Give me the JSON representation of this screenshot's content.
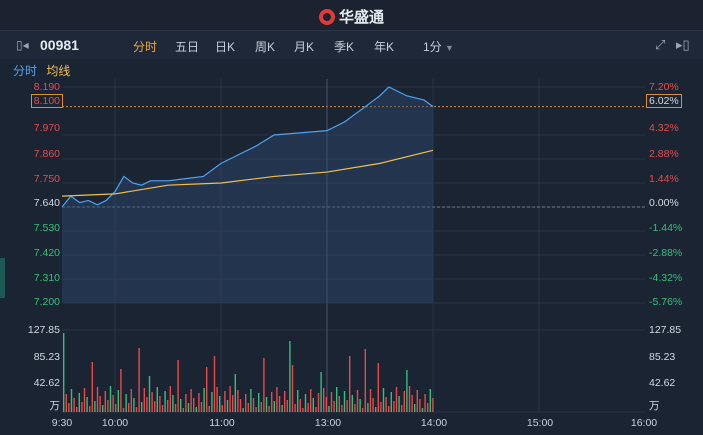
{
  "brand": {
    "name": "华盛通"
  },
  "toolbar": {
    "stock_code": "00981",
    "tabs": [
      "分时",
      "五日",
      "日K",
      "周K",
      "月K",
      "季K",
      "年K"
    ],
    "active_tab": "分时",
    "interval": "1分"
  },
  "legend": {
    "line1": "分时",
    "line2": "均线"
  },
  "price_axis": {
    "left": [
      "8.190",
      "8.100",
      "7.970",
      "7.860",
      "7.750",
      "7.640",
      "7.530",
      "7.420",
      "7.310",
      "7.200"
    ],
    "right": [
      "7.20%",
      "6.02%",
      "4.32%",
      "2.88%",
      "1.44%",
      "0.00%",
      "-1.44%",
      "-2.88%",
      "-4.32%",
      "-5.76%"
    ],
    "current_price": "8.100",
    "current_change": "6.02%"
  },
  "volume_axis": {
    "left": [
      "127.85",
      "85.23",
      "42.62",
      "万"
    ],
    "right": [
      "127.85",
      "85.23",
      "42.62",
      "万"
    ]
  },
  "time_axis": [
    "9:30",
    "10:00",
    "11:00",
    "13:00",
    "14:00",
    "15:00",
    "16:00"
  ],
  "colors": {
    "price_line": "#4da3f0",
    "avg_line": "#f2c04a",
    "up": "#e84a4a",
    "down": "#2ec27a",
    "highlight": "#e58a2e"
  },
  "chart_data": {
    "type": "line",
    "x_range": [
      "9:30",
      "16:00"
    ],
    "ylim": [
      7.2,
      8.19
    ],
    "prev_close": 7.64,
    "series": [
      {
        "name": "分时",
        "x": [
          "9:30",
          "9:35",
          "9:40",
          "9:45",
          "9:50",
          "9:55",
          "10:00",
          "10:05",
          "10:10",
          "10:15",
          "10:20",
          "10:30",
          "10:40",
          "10:50",
          "11:00",
          "11:10",
          "11:20",
          "11:30",
          "13:00",
          "13:10",
          "13:20",
          "13:30",
          "13:35",
          "13:45",
          "13:55",
          "14:00"
        ],
        "values": [
          7.64,
          7.69,
          7.66,
          7.67,
          7.65,
          7.67,
          7.71,
          7.78,
          7.75,
          7.74,
          7.76,
          7.76,
          7.77,
          7.78,
          7.84,
          7.88,
          7.92,
          7.97,
          7.99,
          8.03,
          8.09,
          8.15,
          8.19,
          8.15,
          8.13,
          8.1
        ]
      },
      {
        "name": "均线",
        "x": [
          "9:30",
          "10:00",
          "10:30",
          "11:00",
          "11:30",
          "13:00",
          "13:30",
          "14:00"
        ],
        "values": [
          7.69,
          7.7,
          7.74,
          7.75,
          7.78,
          7.8,
          7.84,
          7.9
        ]
      }
    ],
    "volume_ylim": [
      0,
      127.85
    ]
  }
}
